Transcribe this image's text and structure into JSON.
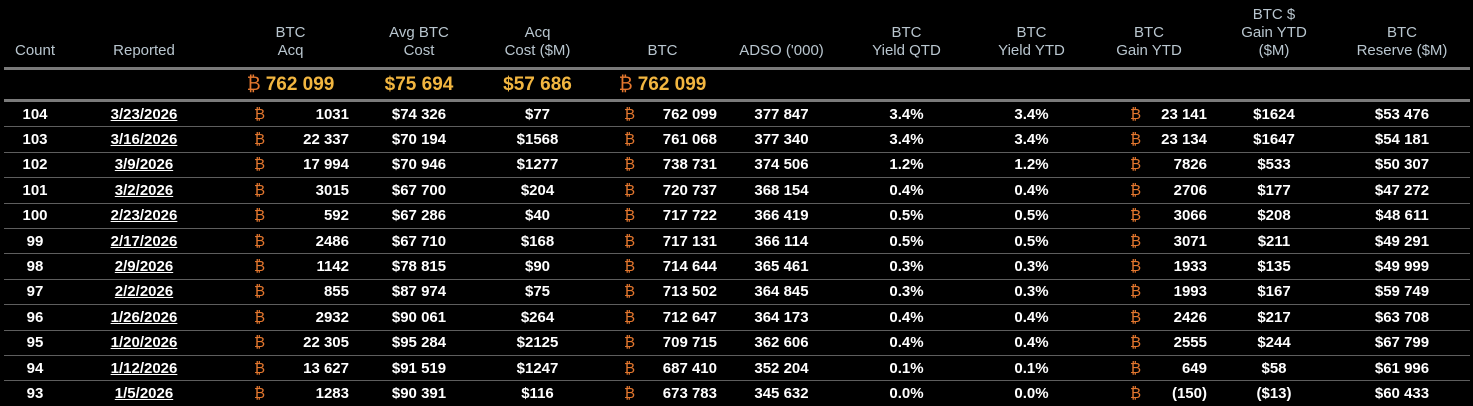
{
  "headers": [
    "Count",
    "Reported",
    "BTC\nAcq",
    "Avg BTC\nCost",
    "Acq\nCost ($M)",
    "BTC",
    "ADSO ('000)",
    "BTC\nYield QTD",
    "BTC\nYield YTD",
    "BTC\nGain YTD",
    "BTC $\nGain YTD\n($M)",
    "BTC\nReserve ($M)"
  ],
  "btc_symbol": "₿",
  "summary": {
    "btc_acq": "762 099",
    "avg_cost": "$75 694",
    "acq_cost": "$57 686",
    "btc": "762 099"
  },
  "rows": [
    {
      "count": "104",
      "reported": "3/23/2026",
      "btc_acq": "1031",
      "avg_cost": "$74 326",
      "acq_cost": "$77",
      "btc": "762 099",
      "adso": "377 847",
      "yield_qtd": "3.4%",
      "yield_ytd": "3.4%",
      "gain_ytd": "23 141",
      "usd_gain_ytd": "$1624",
      "reserve": "$53 476"
    },
    {
      "count": "103",
      "reported": "3/16/2026",
      "btc_acq": "22 337",
      "avg_cost": "$70 194",
      "acq_cost": "$1568",
      "btc": "761 068",
      "adso": "377 340",
      "yield_qtd": "3.4%",
      "yield_ytd": "3.4%",
      "gain_ytd": "23 134",
      "usd_gain_ytd": "$1647",
      "reserve": "$54 181"
    },
    {
      "count": "102",
      "reported": "3/9/2026",
      "btc_acq": "17 994",
      "avg_cost": "$70 946",
      "acq_cost": "$1277",
      "btc": "738 731",
      "adso": "374 506",
      "yield_qtd": "1.2%",
      "yield_ytd": "1.2%",
      "gain_ytd": "7826",
      "usd_gain_ytd": "$533",
      "reserve": "$50 307"
    },
    {
      "count": "101",
      "reported": "3/2/2026",
      "btc_acq": "3015",
      "avg_cost": "$67 700",
      "acq_cost": "$204",
      "btc": "720 737",
      "adso": "368 154",
      "yield_qtd": "0.4%",
      "yield_ytd": "0.4%",
      "gain_ytd": "2706",
      "usd_gain_ytd": "$177",
      "reserve": "$47 272"
    },
    {
      "count": "100",
      "reported": "2/23/2026",
      "btc_acq": "592",
      "avg_cost": "$67 286",
      "acq_cost": "$40",
      "btc": "717 722",
      "adso": "366 419",
      "yield_qtd": "0.5%",
      "yield_ytd": "0.5%",
      "gain_ytd": "3066",
      "usd_gain_ytd": "$208",
      "reserve": "$48 611"
    },
    {
      "count": "99",
      "reported": "2/17/2026",
      "btc_acq": "2486",
      "avg_cost": "$67 710",
      "acq_cost": "$168",
      "btc": "717 131",
      "adso": "366 114",
      "yield_qtd": "0.5%",
      "yield_ytd": "0.5%",
      "gain_ytd": "3071",
      "usd_gain_ytd": "$211",
      "reserve": "$49 291"
    },
    {
      "count": "98",
      "reported": "2/9/2026",
      "btc_acq": "1142",
      "avg_cost": "$78 815",
      "acq_cost": "$90",
      "btc": "714 644",
      "adso": "365 461",
      "yield_qtd": "0.3%",
      "yield_ytd": "0.3%",
      "gain_ytd": "1933",
      "usd_gain_ytd": "$135",
      "reserve": "$49 999"
    },
    {
      "count": "97",
      "reported": "2/2/2026",
      "btc_acq": "855",
      "avg_cost": "$87 974",
      "acq_cost": "$75",
      "btc": "713 502",
      "adso": "364 845",
      "yield_qtd": "0.3%",
      "yield_ytd": "0.3%",
      "gain_ytd": "1993",
      "usd_gain_ytd": "$167",
      "reserve": "$59 749"
    },
    {
      "count": "96",
      "reported": "1/26/2026",
      "btc_acq": "2932",
      "avg_cost": "$90 061",
      "acq_cost": "$264",
      "btc": "712 647",
      "adso": "364 173",
      "yield_qtd": "0.4%",
      "yield_ytd": "0.4%",
      "gain_ytd": "2426",
      "usd_gain_ytd": "$217",
      "reserve": "$63 708"
    },
    {
      "count": "95",
      "reported": "1/20/2026",
      "btc_acq": "22 305",
      "avg_cost": "$95 284",
      "acq_cost": "$2125",
      "btc": "709 715",
      "adso": "362 606",
      "yield_qtd": "0.4%",
      "yield_ytd": "0.4%",
      "gain_ytd": "2555",
      "usd_gain_ytd": "$244",
      "reserve": "$67 799"
    },
    {
      "count": "94",
      "reported": "1/12/2026",
      "btc_acq": "13 627",
      "avg_cost": "$91 519",
      "acq_cost": "$1247",
      "btc": "687 410",
      "adso": "352 204",
      "yield_qtd": "0.1%",
      "yield_ytd": "0.1%",
      "gain_ytd": "649",
      "usd_gain_ytd": "$58",
      "reserve": "$61 996"
    },
    {
      "count": "93",
      "reported": "1/5/2026",
      "btc_acq": "1283",
      "avg_cost": "$90 391",
      "acq_cost": "$116",
      "btc": "673 783",
      "adso": "345 632",
      "yield_qtd": "0.0%",
      "yield_ytd": "0.0%",
      "gain_ytd": "(150)",
      "usd_gain_ytd": "($13)",
      "reserve": "$60 433"
    }
  ]
}
